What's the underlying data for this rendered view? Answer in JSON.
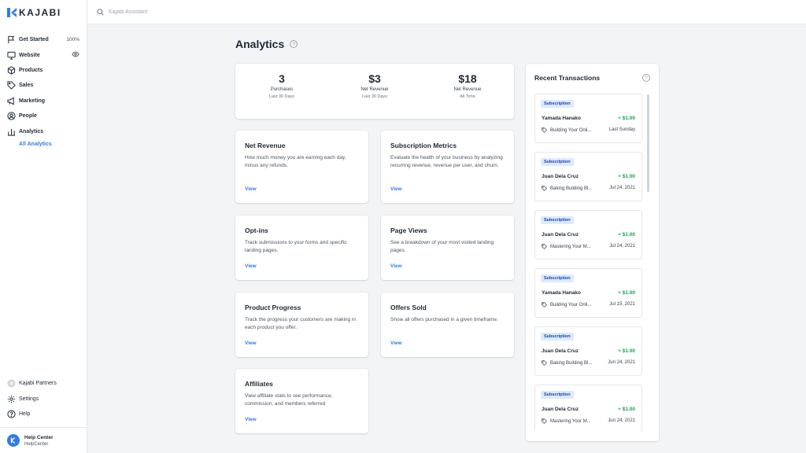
{
  "app": {
    "logo_text": "KAJABI"
  },
  "search": {
    "placeholder": "Kajabi Assistant"
  },
  "sidebar": {
    "items": [
      {
        "label": "Get Started",
        "extra": "100%"
      },
      {
        "label": "Website"
      },
      {
        "label": "Products"
      },
      {
        "label": "Sales"
      },
      {
        "label": "Marketing"
      },
      {
        "label": "People"
      },
      {
        "label": "Analytics"
      }
    ],
    "sub_item": "All Analytics",
    "bottom_items": [
      {
        "label": "Kajabi Partners"
      },
      {
        "label": "Settings"
      },
      {
        "label": "Help"
      }
    ],
    "help_center": {
      "title": "Help Center",
      "subtitle": "HelpCenter"
    }
  },
  "page": {
    "title": "Analytics"
  },
  "stats": [
    {
      "value": "3",
      "label": "Purchases",
      "period": "Last 30 Days"
    },
    {
      "value": "$3",
      "label": "Net Revenue",
      "period": "Last 30 Days"
    },
    {
      "value": "$18",
      "label": "Net Revenue",
      "period": "All Time"
    }
  ],
  "reports": [
    {
      "title": "Net Revenue",
      "desc": "How much money you are earning each day, minus any refunds.",
      "link": "View"
    },
    {
      "title": "Subscription Metrics",
      "desc": "Evaluate the health of your business by analyzing recurring revenue, revenue per user, and churn.",
      "link": "View"
    },
    {
      "title": "Opt-ins",
      "desc": "Track submissions to your forms and specific landing pages.",
      "link": "View"
    },
    {
      "title": "Page Views",
      "desc": "See a breakdown of your most visited landing pages.",
      "link": "View"
    },
    {
      "title": "Product Progress",
      "desc": "Track the progress your customers are making in each product you offer.",
      "link": "View"
    },
    {
      "title": "Offers Sold",
      "desc": "Show all offers purchased in a given timeframe.",
      "link": "View"
    },
    {
      "title": "Affiliates",
      "desc": "View affiliate stats to see performance, commission, and members referred",
      "link": "View"
    }
  ],
  "transactions": {
    "title": "Recent Transactions",
    "items": [
      {
        "badge": "Subscription",
        "name": "Yamada Hanako",
        "amount": "+ $1.00",
        "product": "Building Your Onli...",
        "date": "Last Sunday"
      },
      {
        "badge": "Subscription",
        "name": "Juan Dela Cruz",
        "amount": "+ $1.00",
        "product": "Baking Building Bl...",
        "date": "Jul 24, 2021"
      },
      {
        "badge": "Subscription",
        "name": "Juan Dela Cruz",
        "amount": "+ $1.00",
        "product": "Mastering Your M...",
        "date": "Jul 24, 2021"
      },
      {
        "badge": "Subscription",
        "name": "Yamada Hanako",
        "amount": "+ $1.00",
        "product": "Building Your Onli...",
        "date": "Jul 15, 2021"
      },
      {
        "badge": "Subscription",
        "name": "Juan Dela Cruz",
        "amount": "+ $1.00",
        "product": "Baking Building Bl...",
        "date": "Jun 24, 2021"
      },
      {
        "badge": "Subscription",
        "name": "Juan Dela Cruz",
        "amount": "+ $1.00",
        "product": "Mastering Your M...",
        "date": "Jun 24, 2021"
      }
    ]
  },
  "colors": {
    "accent": "#2f7de1",
    "positive": "#16a34a",
    "badge_bg": "#dbeafe"
  }
}
